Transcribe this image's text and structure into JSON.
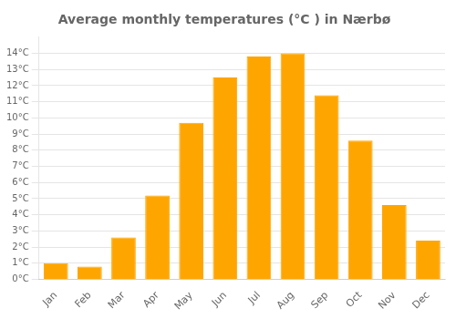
{
  "chart_data": {
    "type": "bar",
    "title": "Average monthly temperatures (°C ) in Nærbø",
    "categories": [
      "Jan",
      "Feb",
      "Mar",
      "Apr",
      "May",
      "Jun",
      "Jul",
      "Aug",
      "Sep",
      "Oct",
      "Nov",
      "Dec"
    ],
    "values": [
      1.0,
      0.8,
      2.6,
      5.2,
      9.7,
      12.5,
      13.8,
      14.0,
      11.4,
      8.6,
      4.6,
      2.4
    ],
    "color": "#FFA500",
    "ylim": [
      0,
      15
    ],
    "yticks": [
      {
        "value": 0,
        "label": "0°C"
      },
      {
        "value": 1,
        "label": "1°C"
      },
      {
        "value": 2,
        "label": "2°C"
      },
      {
        "value": 3,
        "label": "3°C"
      },
      {
        "value": 4,
        "label": "4°C"
      },
      {
        "value": 5,
        "label": "5°C"
      },
      {
        "value": 6,
        "label": "6°C"
      },
      {
        "value": 7,
        "label": "7°C"
      },
      {
        "value": 8,
        "label": "8°C"
      },
      {
        "value": 9,
        "label": "9°C"
      },
      {
        "value": 10,
        "label": "10°C"
      },
      {
        "value": 11,
        "label": "11°C"
      },
      {
        "value": 12,
        "label": "12°C"
      },
      {
        "value": 13,
        "label": "13°C"
      },
      {
        "value": 14,
        "label": "14°C"
      }
    ],
    "grid": true
  }
}
